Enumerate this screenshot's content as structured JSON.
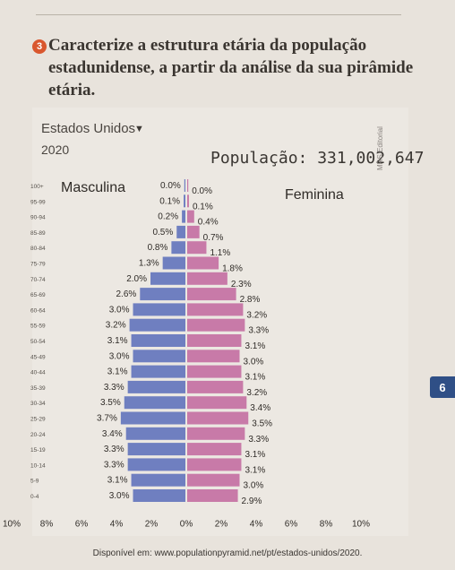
{
  "question": {
    "number": "3",
    "text": "Caracterize a estrutura etária da população estadunidense, a partir da análise da sua pirâmide etária."
  },
  "chart_header": {
    "country": "Estados Unidos",
    "dropdown_icon": "chevron-down-icon",
    "year": "2020",
    "population": "População: 331,002,647",
    "publisher": "MRS Editorial"
  },
  "side_tab": "6",
  "source": "Disponível em: www.populationpyramid.net/pt/estados-unidos/2020.",
  "chart_data": {
    "type": "bar",
    "orientation": "horizontal-pyramid",
    "categories": [
      "100+",
      "95-99",
      "90-94",
      "85-89",
      "80-84",
      "75-79",
      "70-74",
      "65-69",
      "60-64",
      "55-59",
      "50-54",
      "45-49",
      "40-44",
      "35-39",
      "30-34",
      "25-29",
      "20-24",
      "15-19",
      "10-14",
      "5-9",
      "0-4"
    ],
    "series": [
      {
        "name": "Masculina",
        "values": [
          0.0,
          0.1,
          0.2,
          0.5,
          0.8,
          1.3,
          2.0,
          2.6,
          3.0,
          3.2,
          3.1,
          3.0,
          3.1,
          3.3,
          3.5,
          3.7,
          3.4,
          3.3,
          3.3,
          3.1,
          3.0
        ],
        "labels": [
          "0.0%",
          "0.1%",
          "0.2%",
          "0.5%",
          "0.8%",
          "1.3%",
          "2.0%",
          "2.6%",
          "3.0%",
          "3.2%",
          "3.1%",
          "3.0%",
          "3.1%",
          "3.3%",
          "3.5%",
          "3.7%",
          "3.4%",
          "3.3%",
          "3.3%",
          "3.1%",
          "3.0%"
        ],
        "color": "#6f7fc0"
      },
      {
        "name": "Feminina",
        "values": [
          0.0,
          0.1,
          0.4,
          0.7,
          1.1,
          1.8,
          2.3,
          2.8,
          3.2,
          3.3,
          3.1,
          3.0,
          3.1,
          3.2,
          3.4,
          3.5,
          3.3,
          3.1,
          3.1,
          3.0,
          2.9
        ],
        "labels": [
          "0.0%",
          "0.1%",
          "0.4%",
          "0.7%",
          "1.1%",
          "1.8%",
          "2.3%",
          "2.8%",
          "3.2%",
          "3.3%",
          "3.1%",
          "3.0%",
          "3.1%",
          "3.2%",
          "3.4%",
          "3.5%",
          "3.3%",
          "3.1%",
          "3.1%",
          "3.0%",
          "2.9%"
        ],
        "color": "#c87aa8"
      }
    ],
    "x_ticks": [
      "10%",
      "8%",
      "6%",
      "4%",
      "2%",
      "0%",
      "2%",
      "4%",
      "6%",
      "8%",
      "10%"
    ],
    "xlim": [
      -10,
      10
    ],
    "grid": false
  }
}
